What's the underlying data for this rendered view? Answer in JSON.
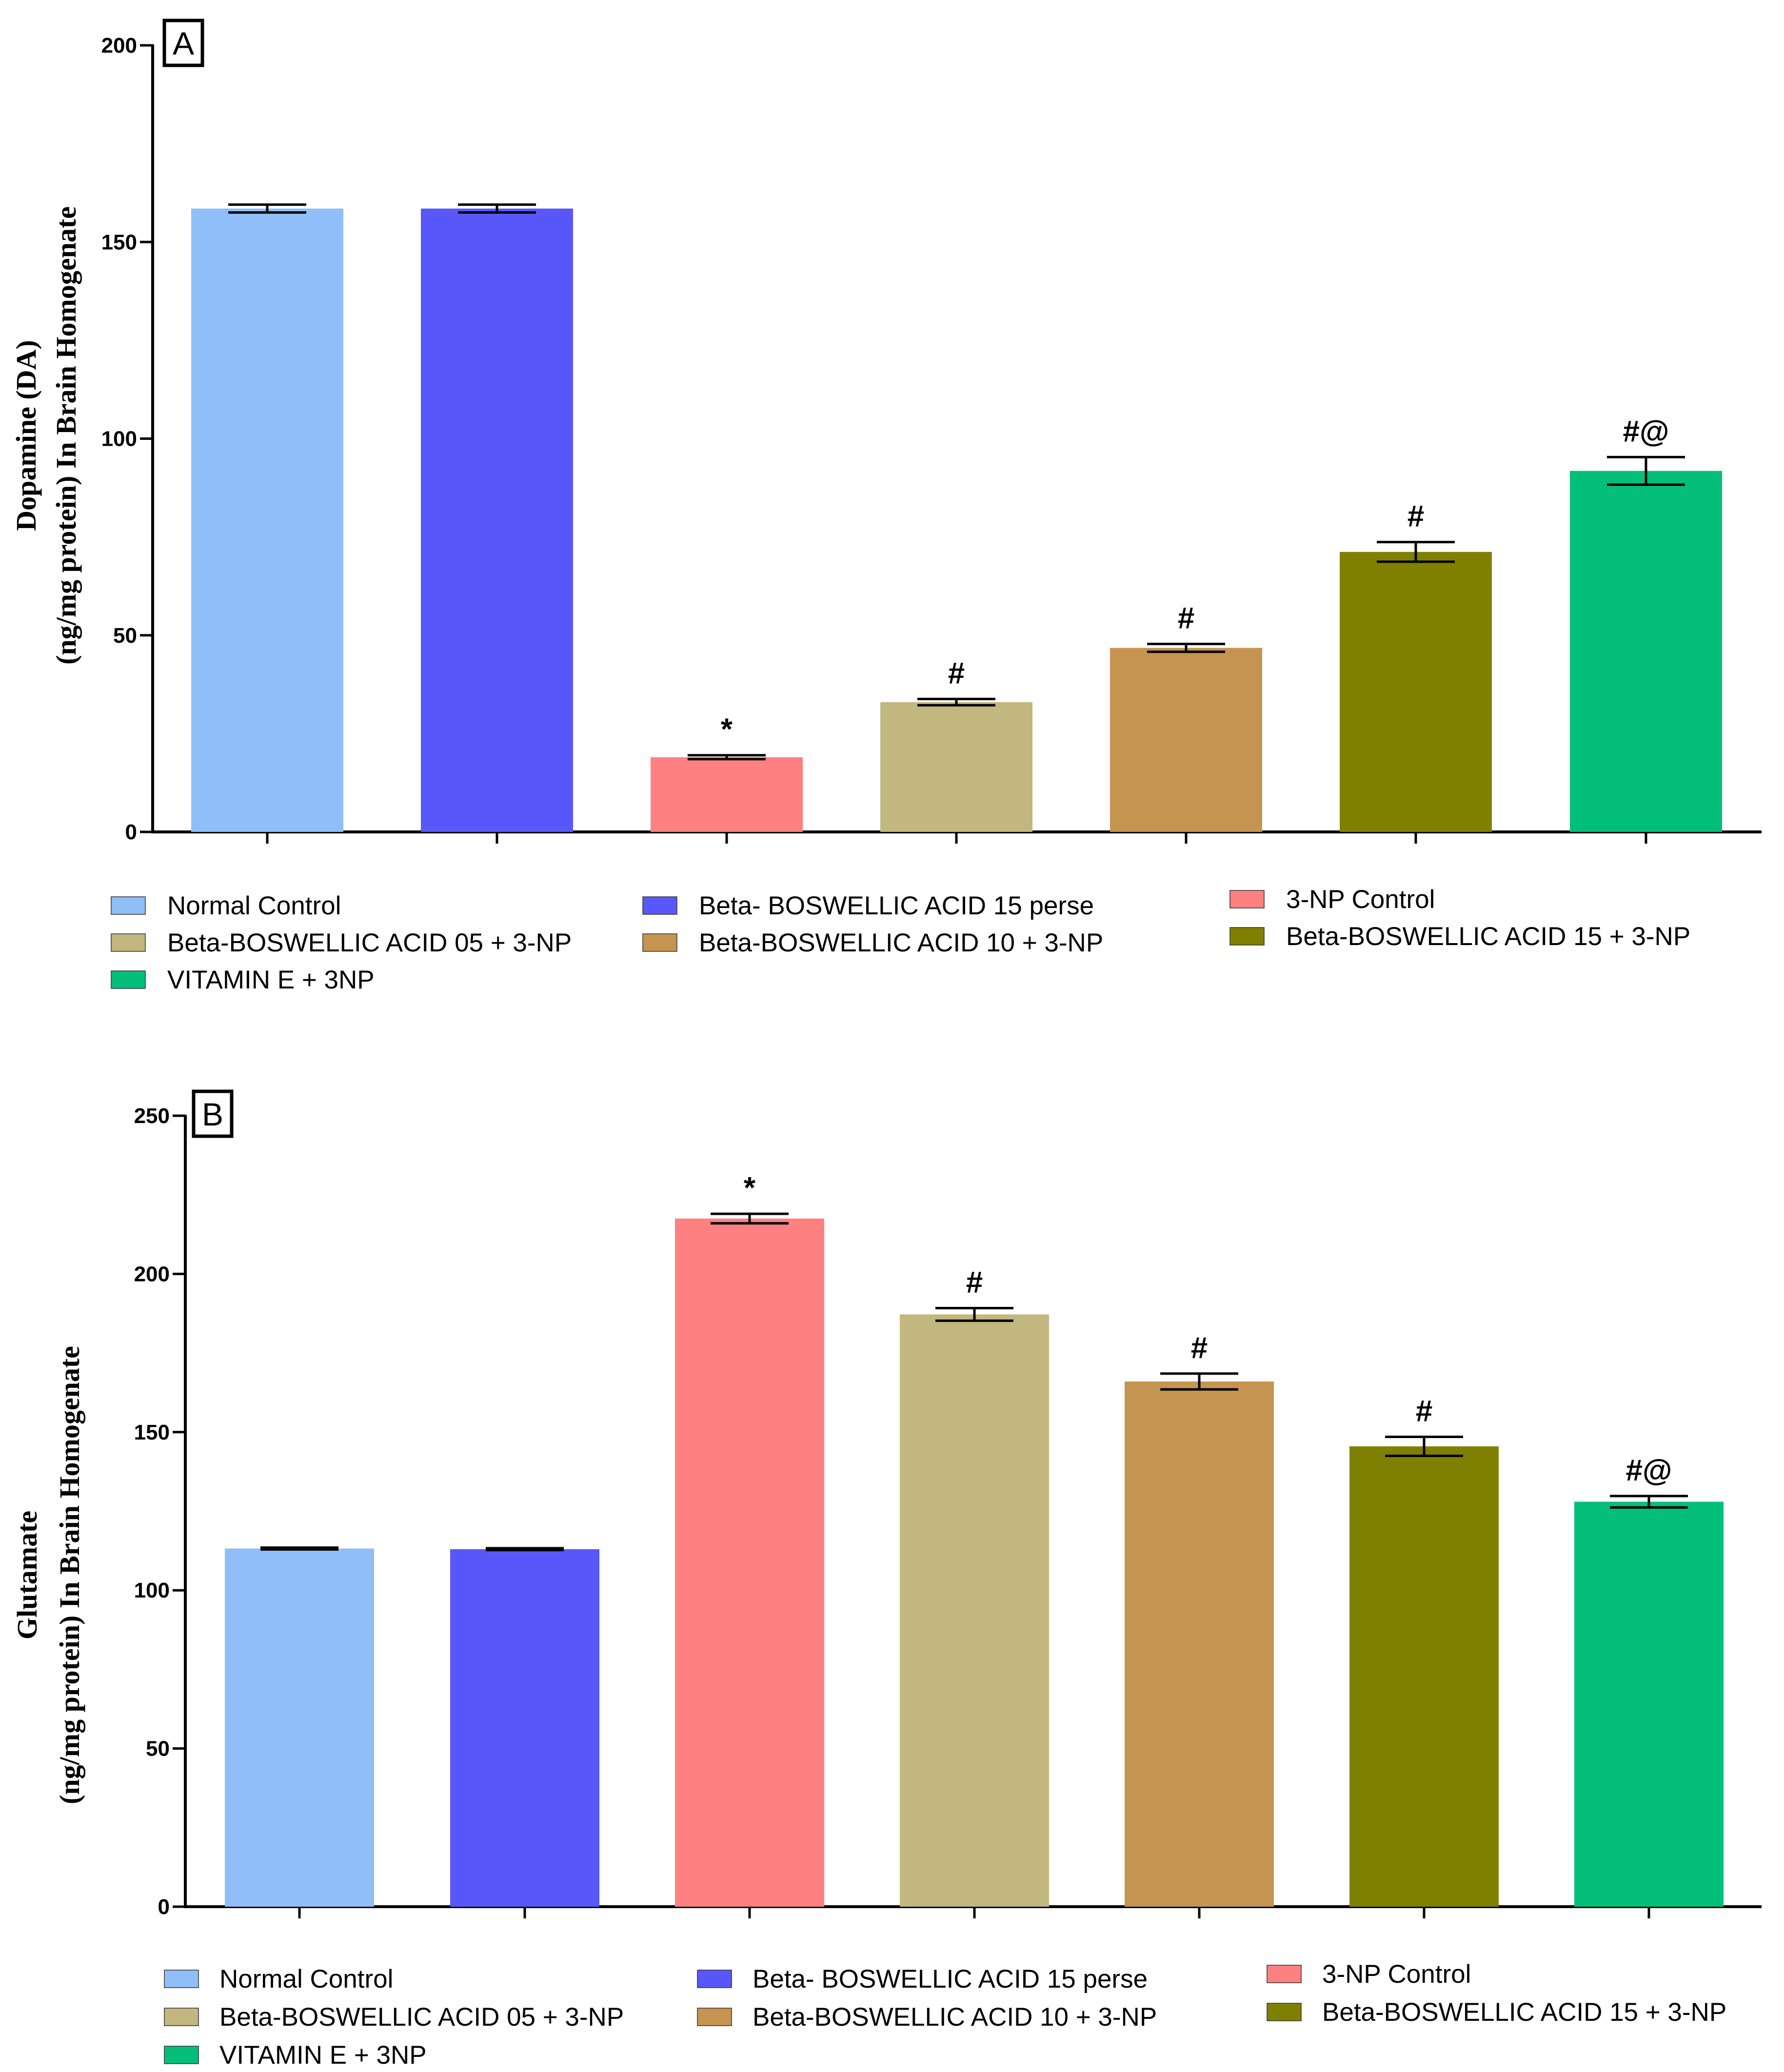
{
  "legend": [
    {
      "label": "Normal Control",
      "color": "#90BEF8"
    },
    {
      "label": "Beta- BOSWELLIC ACID 15 perse",
      "color": "#5858FA"
    },
    {
      "label": "3-NP Control",
      "color": "#FF8080"
    },
    {
      "label": "Beta-BOSWELLIC ACID 05 + 3-NP",
      "color": "#C1B77F"
    },
    {
      "label": "Beta-BOSWELLIC ACID 10 + 3-NP",
      "color": "#C59450"
    },
    {
      "label": "Beta-BOSWELLIC ACID 15 + 3-NP",
      "color": "#808000"
    },
    {
      "label": "VITAMIN E + 3NP",
      "color": "#04BF7A"
    }
  ],
  "chart_data": [
    {
      "type": "bar",
      "panel_label": "A",
      "ylabel_line1": "Dopamine (DA)",
      "ylabel_line2": "(ng/mg protein) In Brain Homogenate",
      "ylim": [
        0,
        200
      ],
      "yticks": [
        "0",
        "50",
        "100",
        "150",
        "200"
      ],
      "categories": [
        "Normal Control",
        "Beta- BOSWELLIC ACID 15 perse",
        "3-NP Control",
        "Beta-BOSWELLIC ACID 05 + 3-NP",
        "Beta-BOSWELLIC ACID 10 + 3-NP",
        "Beta-BOSWELLIC ACID 15 + 3-NP",
        "VITAMIN E + 3NP"
      ],
      "values": [
        158.5,
        158.5,
        19,
        33,
        46.8,
        71.2,
        91.8
      ],
      "errors": [
        1,
        1,
        0.5,
        0.8,
        1,
        2.5,
        3.5
      ],
      "annotations": [
        "",
        "",
        "*",
        "#",
        "#",
        "#",
        "#@"
      ]
    },
    {
      "type": "bar",
      "panel_label": "B",
      "ylabel_line1": "Glutamate",
      "ylabel_line2": "(ng/mg protein) In Brain  Homogenate",
      "ylim": [
        0,
        250
      ],
      "yticks": [
        "0",
        "50",
        "100",
        "150",
        "200",
        "250"
      ],
      "categories": [
        "Normal Control",
        "Beta- BOSWELLIC ACID 15 perse",
        "3-NP Control",
        "Beta-BOSWELLIC ACID 05 + 3-NP",
        "Beta-BOSWELLIC ACID 10 + 3-NP",
        "Beta-BOSWELLIC ACID 15 + 3-NP",
        "VITAMIN E + 3NP"
      ],
      "values": [
        113.2,
        113,
        217.5,
        187.2,
        166,
        145.5,
        128
      ],
      "errors": [
        0.3,
        0.3,
        1.5,
        2,
        2.5,
        3,
        1.8
      ],
      "annotations": [
        "",
        "",
        "*",
        "#",
        "#",
        "#",
        "#@"
      ]
    }
  ]
}
